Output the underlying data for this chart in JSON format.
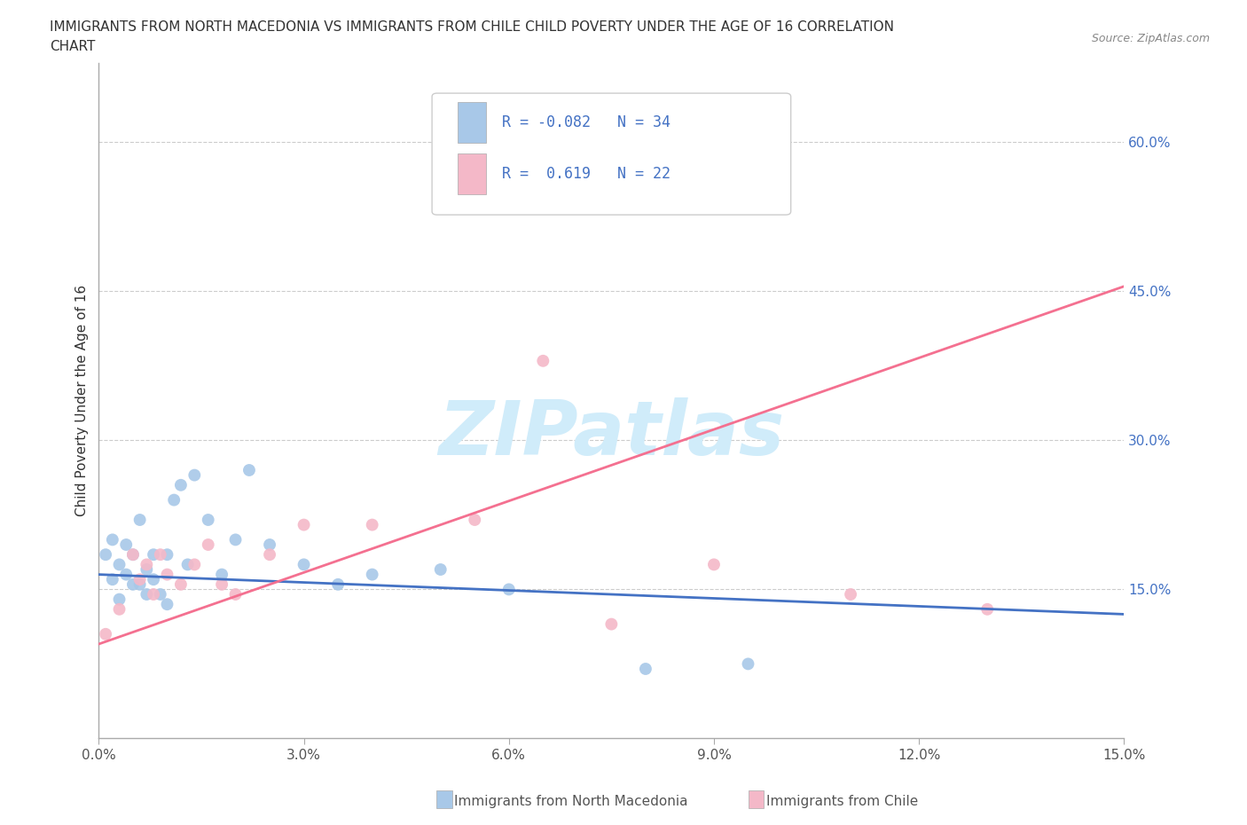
{
  "title_line1": "IMMIGRANTS FROM NORTH MACEDONIA VS IMMIGRANTS FROM CHILE CHILD POVERTY UNDER THE AGE OF 16 CORRELATION",
  "title_line2": "CHART",
  "source": "Source: ZipAtlas.com",
  "ylabel": "Child Poverty Under the Age of 16",
  "watermark": "ZIPatlas",
  "xlim": [
    0.0,
    0.15
  ],
  "ylim": [
    0.0,
    0.68
  ],
  "xticks": [
    0.0,
    0.03,
    0.06,
    0.09,
    0.12,
    0.15
  ],
  "xtick_labels": [
    "0.0%",
    "3.0%",
    "6.0%",
    "9.0%",
    "12.0%",
    "15.0%"
  ],
  "yticks": [
    0.15,
    0.3,
    0.45,
    0.6
  ],
  "ytick_labels": [
    "15.0%",
    "30.0%",
    "45.0%",
    "60.0%"
  ],
  "legend_entries": [
    {
      "label": "Immigrants from North Macedonia",
      "color": "#a8c8e8",
      "R": "-0.082",
      "N": "34"
    },
    {
      "label": "Immigrants from Chile",
      "color": "#f4b8c8",
      "R": "0.619",
      "N": "22"
    }
  ],
  "nm_x": [
    0.001,
    0.002,
    0.002,
    0.003,
    0.003,
    0.004,
    0.004,
    0.005,
    0.005,
    0.006,
    0.006,
    0.007,
    0.007,
    0.008,
    0.008,
    0.009,
    0.01,
    0.01,
    0.011,
    0.012,
    0.013,
    0.014,
    0.016,
    0.018,
    0.02,
    0.022,
    0.025,
    0.03,
    0.035,
    0.04,
    0.05,
    0.06,
    0.08,
    0.095
  ],
  "nm_y": [
    0.185,
    0.2,
    0.16,
    0.175,
    0.14,
    0.195,
    0.165,
    0.185,
    0.155,
    0.22,
    0.155,
    0.17,
    0.145,
    0.185,
    0.16,
    0.145,
    0.185,
    0.135,
    0.24,
    0.255,
    0.175,
    0.265,
    0.22,
    0.165,
    0.2,
    0.27,
    0.195,
    0.175,
    0.155,
    0.165,
    0.17,
    0.15,
    0.07,
    0.075
  ],
  "chile_x": [
    0.001,
    0.003,
    0.005,
    0.006,
    0.007,
    0.008,
    0.009,
    0.01,
    0.012,
    0.014,
    0.016,
    0.018,
    0.02,
    0.025,
    0.03,
    0.04,
    0.055,
    0.065,
    0.075,
    0.09,
    0.11,
    0.13
  ],
  "chile_y": [
    0.105,
    0.13,
    0.185,
    0.16,
    0.175,
    0.145,
    0.185,
    0.165,
    0.155,
    0.175,
    0.195,
    0.155,
    0.145,
    0.185,
    0.215,
    0.215,
    0.22,
    0.38,
    0.115,
    0.175,
    0.145,
    0.13
  ],
  "nm_line_color": "#4472c4",
  "chile_line_color": "#f47090",
  "nm_dot_color": "#a8c8e8",
  "chile_dot_color": "#f4b8c8",
  "background_color": "#ffffff",
  "grid_color": "#cccccc",
  "axis_color": "#aaaaaa",
  "tick_color": "#4472c4",
  "title_color": "#333333",
  "source_color": "#888888",
  "watermark_color": "#d0ecfa"
}
